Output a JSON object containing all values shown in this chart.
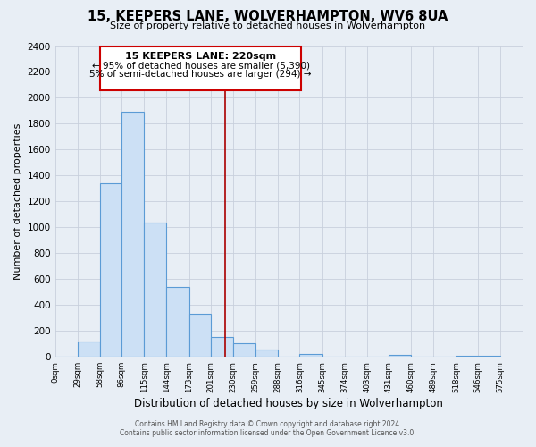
{
  "title": "15, KEEPERS LANE, WOLVERHAMPTON, WV6 8UA",
  "subtitle": "Size of property relative to detached houses in Wolverhampton",
  "xlabel": "Distribution of detached houses by size in Wolverhampton",
  "ylabel": "Number of detached properties",
  "bar_left_edges": [
    0,
    29,
    58,
    86,
    115,
    144,
    173,
    201,
    230,
    259,
    288,
    316,
    345,
    374,
    403,
    431,
    460,
    489,
    518,
    546
  ],
  "bar_widths": [
    29,
    29,
    28,
    29,
    29,
    29,
    28,
    29,
    29,
    29,
    28,
    29,
    29,
    29,
    28,
    29,
    29,
    29,
    28,
    29
  ],
  "bar_heights": [
    0,
    120,
    1340,
    1890,
    1040,
    540,
    330,
    155,
    105,
    60,
    0,
    25,
    0,
    0,
    0,
    15,
    0,
    0,
    10,
    5
  ],
  "bar_color": "#cce0f5",
  "bar_edge_color": "#5b9bd5",
  "grid_color": "#c8d0dc",
  "background_color": "#e8eef5",
  "vline_x": 220,
  "vline_color": "#aa0000",
  "ylim": [
    0,
    2400
  ],
  "yticks": [
    0,
    200,
    400,
    600,
    800,
    1000,
    1200,
    1400,
    1600,
    1800,
    2000,
    2200,
    2400
  ],
  "xlim_max": 604,
  "xtick_labels": [
    "0sqm",
    "29sqm",
    "58sqm",
    "86sqm",
    "115sqm",
    "144sqm",
    "173sqm",
    "201sqm",
    "230sqm",
    "259sqm",
    "288sqm",
    "316sqm",
    "345sqm",
    "374sqm",
    "403sqm",
    "431sqm",
    "460sqm",
    "489sqm",
    "518sqm",
    "546sqm",
    "575sqm"
  ],
  "annotation_box_title": "15 KEEPERS LANE: 220sqm",
  "annotation_line1": "← 95% of detached houses are smaller (5,390)",
  "annotation_line2": "5% of semi-detached houses are larger (294) →",
  "annotation_box_facecolor": "#ffffff",
  "annotation_box_edgecolor": "#cc0000",
  "footer_line1": "Contains HM Land Registry data © Crown copyright and database right 2024.",
  "footer_line2": "Contains public sector information licensed under the Open Government Licence v3.0."
}
